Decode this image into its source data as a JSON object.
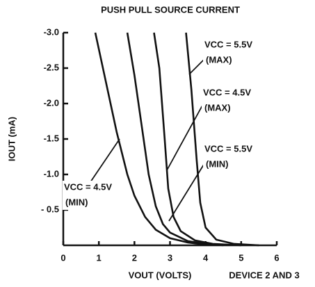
{
  "chart_data": {
    "type": "line",
    "title": "PUSH PULL SOURCE CURRENT",
    "xlabel": "VOUT (VOLTS)",
    "ylabel": "IOUT (mA)",
    "annotation": "DEVICE 2 AND 3",
    "xlim": [
      0,
      6
    ],
    "xticks": [
      0,
      1,
      2,
      3,
      4,
      5,
      6
    ],
    "ylim": [
      0,
      -3
    ],
    "yticks": [
      {
        "value": -3,
        "label": "-3.0"
      },
      {
        "value": -2.5,
        "label": "-2.5"
      },
      {
        "value": -2,
        "label": "-2.0"
      },
      {
        "value": -1.5,
        "label": "-1.5"
      },
      {
        "value": -1,
        "label": "-1.0"
      },
      {
        "value": -0.5,
        "label": "- 0.5"
      }
    ],
    "grid": false,
    "series": [
      {
        "name": "VCC = 4.5V",
        "condition": "(MIN)",
        "color": "#111111",
        "x": [
          0.9,
          1.2,
          1.5,
          1.8,
          2.0,
          2.3,
          2.6,
          3.0,
          3.5,
          4.0
        ],
        "values": [
          -3.0,
          -2.3,
          -1.6,
          -1.0,
          -0.7,
          -0.4,
          -0.22,
          -0.1,
          -0.04,
          -0.01
        ]
      },
      {
        "name": "VCC = 5.5V",
        "condition": "(MIN)",
        "color": "#111111",
        "x": [
          1.8,
          2.0,
          2.2,
          2.4,
          2.6,
          2.8,
          3.0,
          3.5,
          4.0,
          4.5
        ],
        "values": [
          -3.0,
          -2.4,
          -1.7,
          -1.0,
          -0.55,
          -0.3,
          -0.18,
          -0.06,
          -0.02,
          0
        ]
      },
      {
        "name": "VCC = 4.5V",
        "condition": "(MAX)",
        "color": "#111111",
        "x": [
          2.55,
          2.7,
          2.85,
          2.95,
          3.1,
          3.3,
          3.7,
          4.2,
          5.0
        ],
        "values": [
          -3.0,
          -2.5,
          -1.5,
          -0.8,
          -0.4,
          -0.2,
          -0.07,
          -0.02,
          0
        ]
      },
      {
        "name": "VCC = 5.5V",
        "condition": "(MAX)",
        "color": "#111111",
        "x": [
          3.45,
          3.6,
          3.75,
          3.85,
          4.0,
          4.3,
          4.8,
          5.5
        ],
        "values": [
          -3.0,
          -2.2,
          -1.2,
          -0.6,
          -0.25,
          -0.08,
          -0.02,
          0
        ]
      }
    ]
  }
}
